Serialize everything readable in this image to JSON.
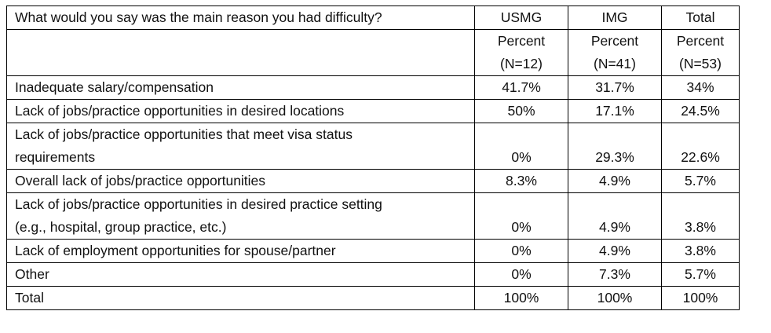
{
  "table": {
    "question": "What would you say was the main reason you had difficulty?",
    "columns": [
      {
        "name": "USMG",
        "unit": "Percent",
        "n": "(N=12)"
      },
      {
        "name": "IMG",
        "unit": "Percent",
        "n": "(N=41)"
      },
      {
        "name": "Total",
        "unit": "Percent",
        "n": "(N=53)"
      }
    ],
    "rows": [
      {
        "lines": [
          "Inadequate salary/compensation"
        ],
        "values": [
          "41.7%",
          "31.7%",
          "34%"
        ]
      },
      {
        "lines": [
          "Lack of jobs/practice opportunities in desired locations"
        ],
        "values": [
          "50%",
          "17.1%",
          "24.5%"
        ]
      },
      {
        "lines": [
          "Lack of jobs/practice opportunities that meet visa status",
          "requirements"
        ],
        "values": [
          "0%",
          "29.3%",
          "22.6%"
        ]
      },
      {
        "lines": [
          "Overall lack of jobs/practice opportunities"
        ],
        "values": [
          "8.3%",
          "4.9%",
          "5.7%"
        ]
      },
      {
        "lines": [
          "Lack of jobs/practice opportunities in desired practice setting",
          "(e.g., hospital, group practice, etc.)"
        ],
        "values": [
          "0%",
          "4.9%",
          "3.8%"
        ]
      },
      {
        "lines": [
          "Lack of employment opportunities for spouse/partner"
        ],
        "values": [
          "0%",
          "4.9%",
          "3.8%"
        ]
      },
      {
        "lines": [
          "Other"
        ],
        "values": [
          "0%",
          "7.3%",
          "5.7%"
        ]
      },
      {
        "lines": [
          "Total"
        ],
        "values": [
          "100%",
          "100%",
          "100%"
        ]
      }
    ]
  }
}
